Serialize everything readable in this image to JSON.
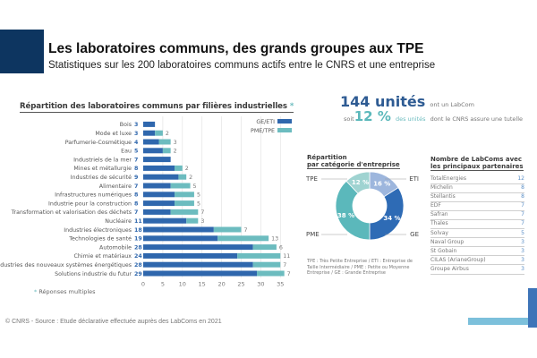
{
  "header": {
    "title": "Les laboratoires communs, des grands groupes aux TPE",
    "subtitle": "Statistiques sur les 200 laboratoires communs actifs entre le CNRS et une entreprise"
  },
  "colors": {
    "header_block": "#0d3560",
    "ge_eti": "#2f67ad",
    "pme_tpe": "#6cbcbf",
    "donut_tpe": "#9fd3d1",
    "donut_eti": "#9db6dd",
    "donut_ge": "#2e6bb5",
    "donut_pme": "#5bb8bb"
  },
  "bar_section": {
    "title": "Répartition des laboratoires communs par filières industrielles",
    "title_star": "*",
    "footnote_star": "*",
    "footnote": "Réponses multiples"
  },
  "stats": {
    "units_value": "144 unités",
    "units_text": "ont un LabCom",
    "pct_prefix": "soit",
    "pct_value": "12 %",
    "pct_teal": "des unités",
    "pct_text": "dont le CNRS assure une tutelle"
  },
  "donut_section": {
    "title_line1": "Répartition",
    "title_line2": "par catégorie d'entreprise",
    "note": "TPE : Très Petite Entreprise / ETI : Entreprise de Taille Intermédiaire / PME : Petite ou Moyenne Entreprise / GE : Grande Entreprise"
  },
  "partners_section": {
    "title_line1": "Nombre de LabComs avec",
    "title_line2": "les principaux partenaires",
    "items": [
      {
        "name": "TotalEnergies",
        "value": "12"
      },
      {
        "name": "Michelin",
        "value": "8"
      },
      {
        "name": "Stellantis",
        "value": "8"
      },
      {
        "name": "EDF",
        "value": "7"
      },
      {
        "name": "Safran",
        "value": "7"
      },
      {
        "name": "Thales",
        "value": "7"
      },
      {
        "name": "Solvay",
        "value": "5"
      },
      {
        "name": "Naval Group",
        "value": "3"
      },
      {
        "name": "St Gobain",
        "value": "3"
      },
      {
        "name": "CILAS (ArianeGroup)",
        "value": "3"
      },
      {
        "name": "Groupe Airbus",
        "value": "3"
      }
    ]
  },
  "footer": {
    "source": "© CNRS - Source : Etude déclarative effectuée auprès des LabComs en 2021"
  },
  "chart_data": [
    {
      "type": "bar",
      "orientation": "horizontal",
      "stacked": true,
      "title": "Répartition des laboratoires communs par filières industrielles *",
      "categories": [
        "Bois",
        "Mode et luxe",
        "Parfumerie-Cosmétique",
        "Eau",
        "Industriels de la mer",
        "Mines et métallurgie",
        "Industries de sécurité",
        "Alimentaire",
        "Infrastructures numériques",
        "Industrie pour la construction",
        "Transformation et valorisation des déchets",
        "Nucléaire",
        "Industries électroniques",
        "Technologies de santé",
        "Automobile",
        "Chimie et matériaux",
        "Industries des nouveaux systèmes énergétiques",
        "Solutions industrie du futur"
      ],
      "series": [
        {
          "name": "GE/ETI",
          "values": [
            3,
            3,
            4,
            5,
            7,
            8,
            9,
            7,
            8,
            8,
            7,
            11,
            18,
            19,
            28,
            24,
            28,
            29
          ]
        },
        {
          "name": "PME/TPE",
          "values": [
            0,
            2,
            3,
            2,
            0,
            2,
            2,
            5,
            5,
            5,
            7,
            3,
            7,
            13,
            6,
            11,
            7,
            7
          ]
        }
      ],
      "xticks": [
        0,
        5,
        10,
        15,
        20,
        25,
        30,
        35
      ],
      "xlim": [
        0,
        36
      ],
      "grid": true,
      "legend": "top-right",
      "xlabel": "",
      "ylabel": ""
    },
    {
      "type": "pie",
      "donut": true,
      "title": "Répartition par catégorie d'entreprise",
      "slices": [
        {
          "label": "ETI",
          "value": 16,
          "display": "16 %"
        },
        {
          "label": "GE",
          "value": 34,
          "display": "34 %"
        },
        {
          "label": "PME",
          "value": 38,
          "display": "38 %"
        },
        {
          "label": "TPE",
          "value": 12,
          "display": "12 %"
        }
      ]
    }
  ]
}
